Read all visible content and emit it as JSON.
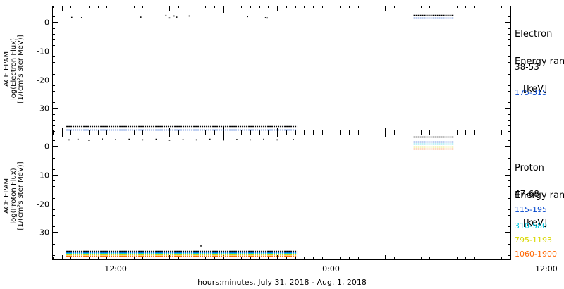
{
  "chart_data": [
    {
      "type": "scatter",
      "panel": "electron",
      "ylabel_lines": [
        "ACE EPAM",
        "log(Electron Flux)",
        "[1/(cm²s ster MeV)]"
      ],
      "yticks": [
        0,
        -10,
        -20,
        -30
      ],
      "ylim": [
        -38.5,
        5.5
      ],
      "legend": {
        "title_lines": [
          "Electron",
          "Energy range",
          "[keV]"
        ],
        "entries": [
          {
            "label": "38-53",
            "color": "#000000"
          },
          {
            "label": "175-315",
            "color": "#0044cc"
          }
        ]
      },
      "series": [
        {
          "name": "38-53",
          "color": "#000000",
          "segments": [
            {
              "start_hr": 0.5,
              "end_hr": 26.2,
              "value": -36.2
            },
            {
              "start_hr": 39.2,
              "end_hr": 43.7,
              "value": 2.6
            }
          ]
        },
        {
          "name": "175-315",
          "color": "#0044cc",
          "segments": [
            {
              "start_hr": 0.5,
              "end_hr": 26.2,
              "value": -37.4
            },
            {
              "start_hr": 39.2,
              "end_hr": 43.7,
              "value": 1.6
            }
          ]
        }
      ],
      "outliers": [
        {
          "name": "38-53",
          "color": "#000000",
          "points": [
            [
              1.1,
              1.7
            ],
            [
              2.2,
              1.6
            ],
            [
              8.8,
              1.8
            ],
            [
              11.6,
              2.4
            ],
            [
              12.0,
              1.5
            ],
            [
              12.5,
              2.2
            ],
            [
              12.8,
              1.8
            ],
            [
              14.2,
              2.2
            ],
            [
              20.7,
              2.0
            ],
            [
              22.7,
              1.6
            ],
            [
              22.9,
              1.5
            ]
          ]
        }
      ]
    },
    {
      "type": "scatter",
      "panel": "proton",
      "ylabel_lines": [
        "ACE EPAM",
        "log(Proton Flux)",
        "[1/(cm²s ster MeV)]"
      ],
      "yticks": [
        0,
        -10,
        -20,
        -30
      ],
      "ylim": [
        -39.5,
        4.5
      ],
      "legend": {
        "title_lines": [
          "Proton",
          "Energy range",
          "[keV]"
        ],
        "entries": [
          {
            "label": "47-68",
            "color": "#000000"
          },
          {
            "label": "115-195",
            "color": "#0044cc"
          },
          {
            "label": "310-580",
            "color": "#00c8e0"
          },
          {
            "label": "795-1193",
            "color": "#d8d800"
          },
          {
            "label": "1060-1900",
            "color": "#ff6600"
          }
        ]
      },
      "series": [
        {
          "name": "47-68",
          "color": "#000000",
          "segments": [
            {
              "start_hr": 0.5,
              "end_hr": 26.2,
              "value": -36.6
            },
            {
              "start_hr": 39.2,
              "end_hr": 43.7,
              "value": 3.3
            }
          ]
        },
        {
          "name": "115-195",
          "color": "#0044cc",
          "segments": [
            {
              "start_hr": 0.5,
              "end_hr": 26.2,
              "value": -37.0
            },
            {
              "start_hr": 39.2,
              "end_hr": 43.7,
              "value": 1.6
            }
          ]
        },
        {
          "name": "310-580",
          "color": "#00c8e0",
          "segments": [
            {
              "start_hr": 0.5,
              "end_hr": 26.2,
              "value": -37.4
            },
            {
              "start_hr": 39.2,
              "end_hr": 43.7,
              "value": 0.8
            }
          ]
        },
        {
          "name": "795-1193",
          "color": "#d8d800",
          "segments": [
            {
              "start_hr": 0.5,
              "end_hr": 26.2,
              "value": -37.8
            },
            {
              "start_hr": 39.2,
              "end_hr": 43.7,
              "value": -0.1
            }
          ]
        },
        {
          "name": "1060-1900",
          "color": "#ff6600",
          "segments": [
            {
              "start_hr": 0.5,
              "end_hr": 26.2,
              "value": -38.2
            },
            {
              "start_hr": 39.2,
              "end_hr": 43.7,
              "value": -0.9
            }
          ]
        }
      ],
      "outliers": [
        {
          "name": "47-68",
          "color": "#000000",
          "points": [
            [
              0.8,
              2.2
            ],
            [
              1.8,
              2.4
            ],
            [
              3.0,
              2.1
            ],
            [
              4.5,
              2.5
            ],
            [
              6.0,
              2.3
            ],
            [
              7.5,
              2.4
            ],
            [
              9.0,
              2.2
            ],
            [
              10.5,
              2.4
            ],
            [
              12.0,
              2.1
            ],
            [
              13.5,
              2.3
            ],
            [
              15.0,
              2.2
            ],
            [
              16.5,
              2.4
            ],
            [
              18.0,
              2.1
            ],
            [
              19.5,
              2.3
            ],
            [
              21.0,
              2.2
            ],
            [
              22.5,
              2.4
            ],
            [
              24.0,
              2.2
            ],
            [
              25.8,
              2.3
            ],
            [
              15.5,
              -34.8
            ]
          ]
        }
      ]
    }
  ],
  "x_axis": {
    "label": "hours:minutes, July 31, 2018 - Aug.  1, 2018",
    "range_hours": [
      -1.0,
      50.0
    ],
    "ticks": [
      {
        "hour": 6.0,
        "label": "12:00"
      },
      {
        "hour": 30.0,
        "label": "0:00"
      },
      {
        "hour": 54.0,
        "label": "12:00"
      }
    ]
  }
}
